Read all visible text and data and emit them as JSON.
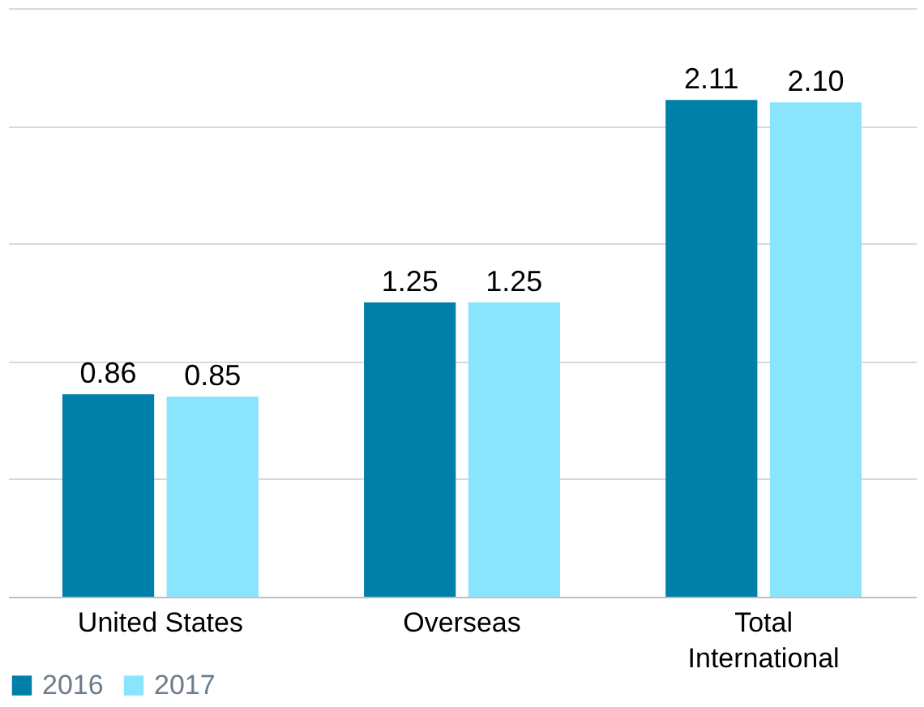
{
  "chart_data": {
    "type": "bar",
    "categories": [
      "United States",
      "Overseas",
      "Total International"
    ],
    "series": [
      {
        "name": "2016",
        "color": "#0080a8",
        "values": [
          0.86,
          1.25,
          2.11
        ],
        "value_labels": [
          "0.86",
          "1.25",
          "2.11"
        ]
      },
      {
        "name": "2017",
        "color": "#8ae5fc",
        "values": [
          0.85,
          1.25,
          2.1
        ],
        "value_labels": [
          "0.85",
          "1.25",
          "2.10"
        ]
      }
    ],
    "ylim": [
      0,
      2.5
    ],
    "yticks": [
      {
        "value": 0,
        "label": null
      },
      {
        "value": 0.5,
        "label": null
      },
      {
        "value": 1.0,
        "label": null
      },
      {
        "value": 1.5,
        "label": null
      },
      {
        "value": 2.0,
        "label": null
      },
      {
        "value": 2.5,
        "label": null
      }
    ],
    "grid": "y",
    "tick_labels": "x",
    "legend": "bottom"
  }
}
